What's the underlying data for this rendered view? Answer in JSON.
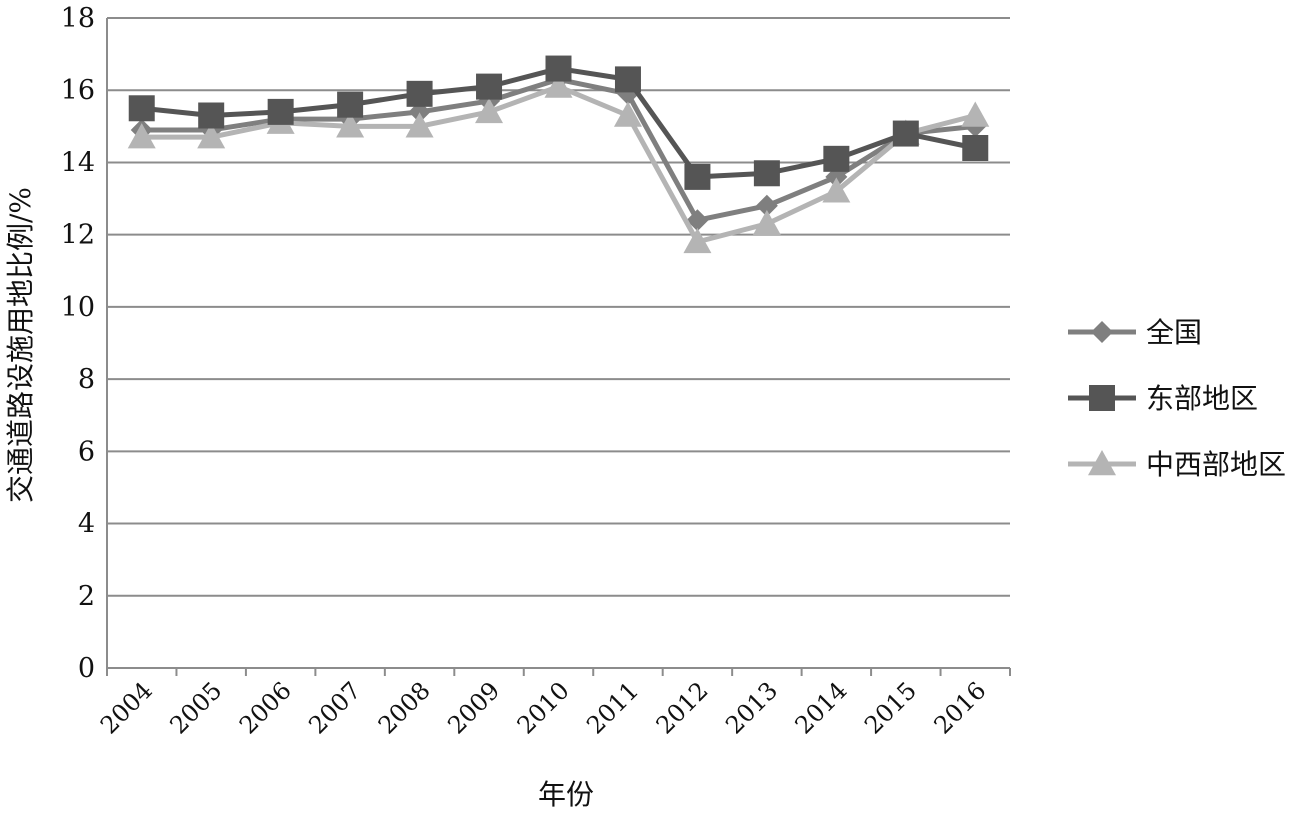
{
  "chart_data": {
    "type": "line",
    "x": [
      "2004",
      "2005",
      "2006",
      "2007",
      "2008",
      "2009",
      "2010",
      "2011",
      "2012",
      "2013",
      "2014",
      "2015",
      "2016"
    ],
    "xlabel": "年份",
    "ylabel": "交通道路设施用地比例/%",
    "ylim": [
      0,
      18
    ],
    "yticks": [
      "0",
      "2",
      "4",
      "6",
      "8",
      "10",
      "12",
      "14",
      "16",
      "18"
    ],
    "grid": true,
    "legend_position": "right",
    "series": [
      {
        "name": "全国",
        "marker": "diamond",
        "color": "#7f7f7f",
        "values": [
          14.9,
          14.9,
          15.2,
          15.2,
          15.4,
          15.7,
          16.3,
          15.9,
          12.4,
          12.8,
          13.6,
          14.8,
          15.0
        ]
      },
      {
        "name": "东部地区",
        "marker": "square",
        "color": "#555555",
        "values": [
          15.5,
          15.3,
          15.4,
          15.6,
          15.9,
          16.1,
          16.6,
          16.3,
          13.6,
          13.7,
          14.1,
          14.8,
          14.4
        ]
      },
      {
        "name": "中西部地区",
        "marker": "triangle",
        "color": "#b4b4b4",
        "values": [
          14.7,
          14.7,
          15.1,
          15.0,
          15.0,
          15.4,
          16.1,
          15.3,
          11.8,
          12.3,
          13.2,
          14.8,
          15.3
        ]
      }
    ]
  }
}
